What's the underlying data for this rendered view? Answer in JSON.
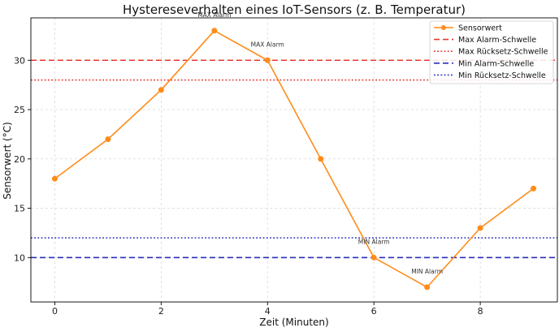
{
  "chart_data": {
    "type": "line",
    "title": "Hystereseverhalten eines IoT-Sensors (z. B. Temperatur)",
    "xlabel": "Zeit (Minuten)",
    "ylabel": "Sensorwert (°C)",
    "xlim": [
      -0.45,
      9.45
    ],
    "ylim": [
      5.5,
      34.3
    ],
    "x_ticks": [
      0,
      2,
      4,
      6,
      8
    ],
    "y_ticks": [
      10,
      15,
      20,
      25,
      30
    ],
    "grid": true,
    "legend_position": "top-right",
    "series": [
      {
        "name": "Sensorwert",
        "color": "#ff8c1a",
        "marker": "circle",
        "x": [
          0,
          1,
          2,
          3,
          4,
          5,
          6,
          7,
          8,
          9
        ],
        "values": [
          18,
          22,
          27,
          33,
          30,
          20,
          10,
          7,
          13,
          17
        ]
      }
    ],
    "thresholds": [
      {
        "name": "Max Alarm-Schwelle",
        "value": 30,
        "color": "#e8382f",
        "style": "dashed"
      },
      {
        "name": "Max Rücksetz-Schwelle",
        "value": 28,
        "color": "#e8382f",
        "style": "dotted"
      },
      {
        "name": "Min Alarm-Schwelle",
        "value": 10,
        "color": "#2a2fb8",
        "style": "dashed"
      },
      {
        "name": "Min Rücksetz-Schwelle",
        "value": 12,
        "color": "#2a2fb8",
        "style": "dotted"
      }
    ],
    "annotations": [
      {
        "text": "MAX Alarm",
        "x": 3,
        "y": 33,
        "position": "above"
      },
      {
        "text": "MAX Alarm",
        "x": 4,
        "y": 30,
        "position": "above"
      },
      {
        "text": "MIN Alarm",
        "x": 6,
        "y": 10,
        "position": "above"
      },
      {
        "text": "MIN Alarm",
        "x": 7,
        "y": 7,
        "position": "above"
      }
    ]
  }
}
